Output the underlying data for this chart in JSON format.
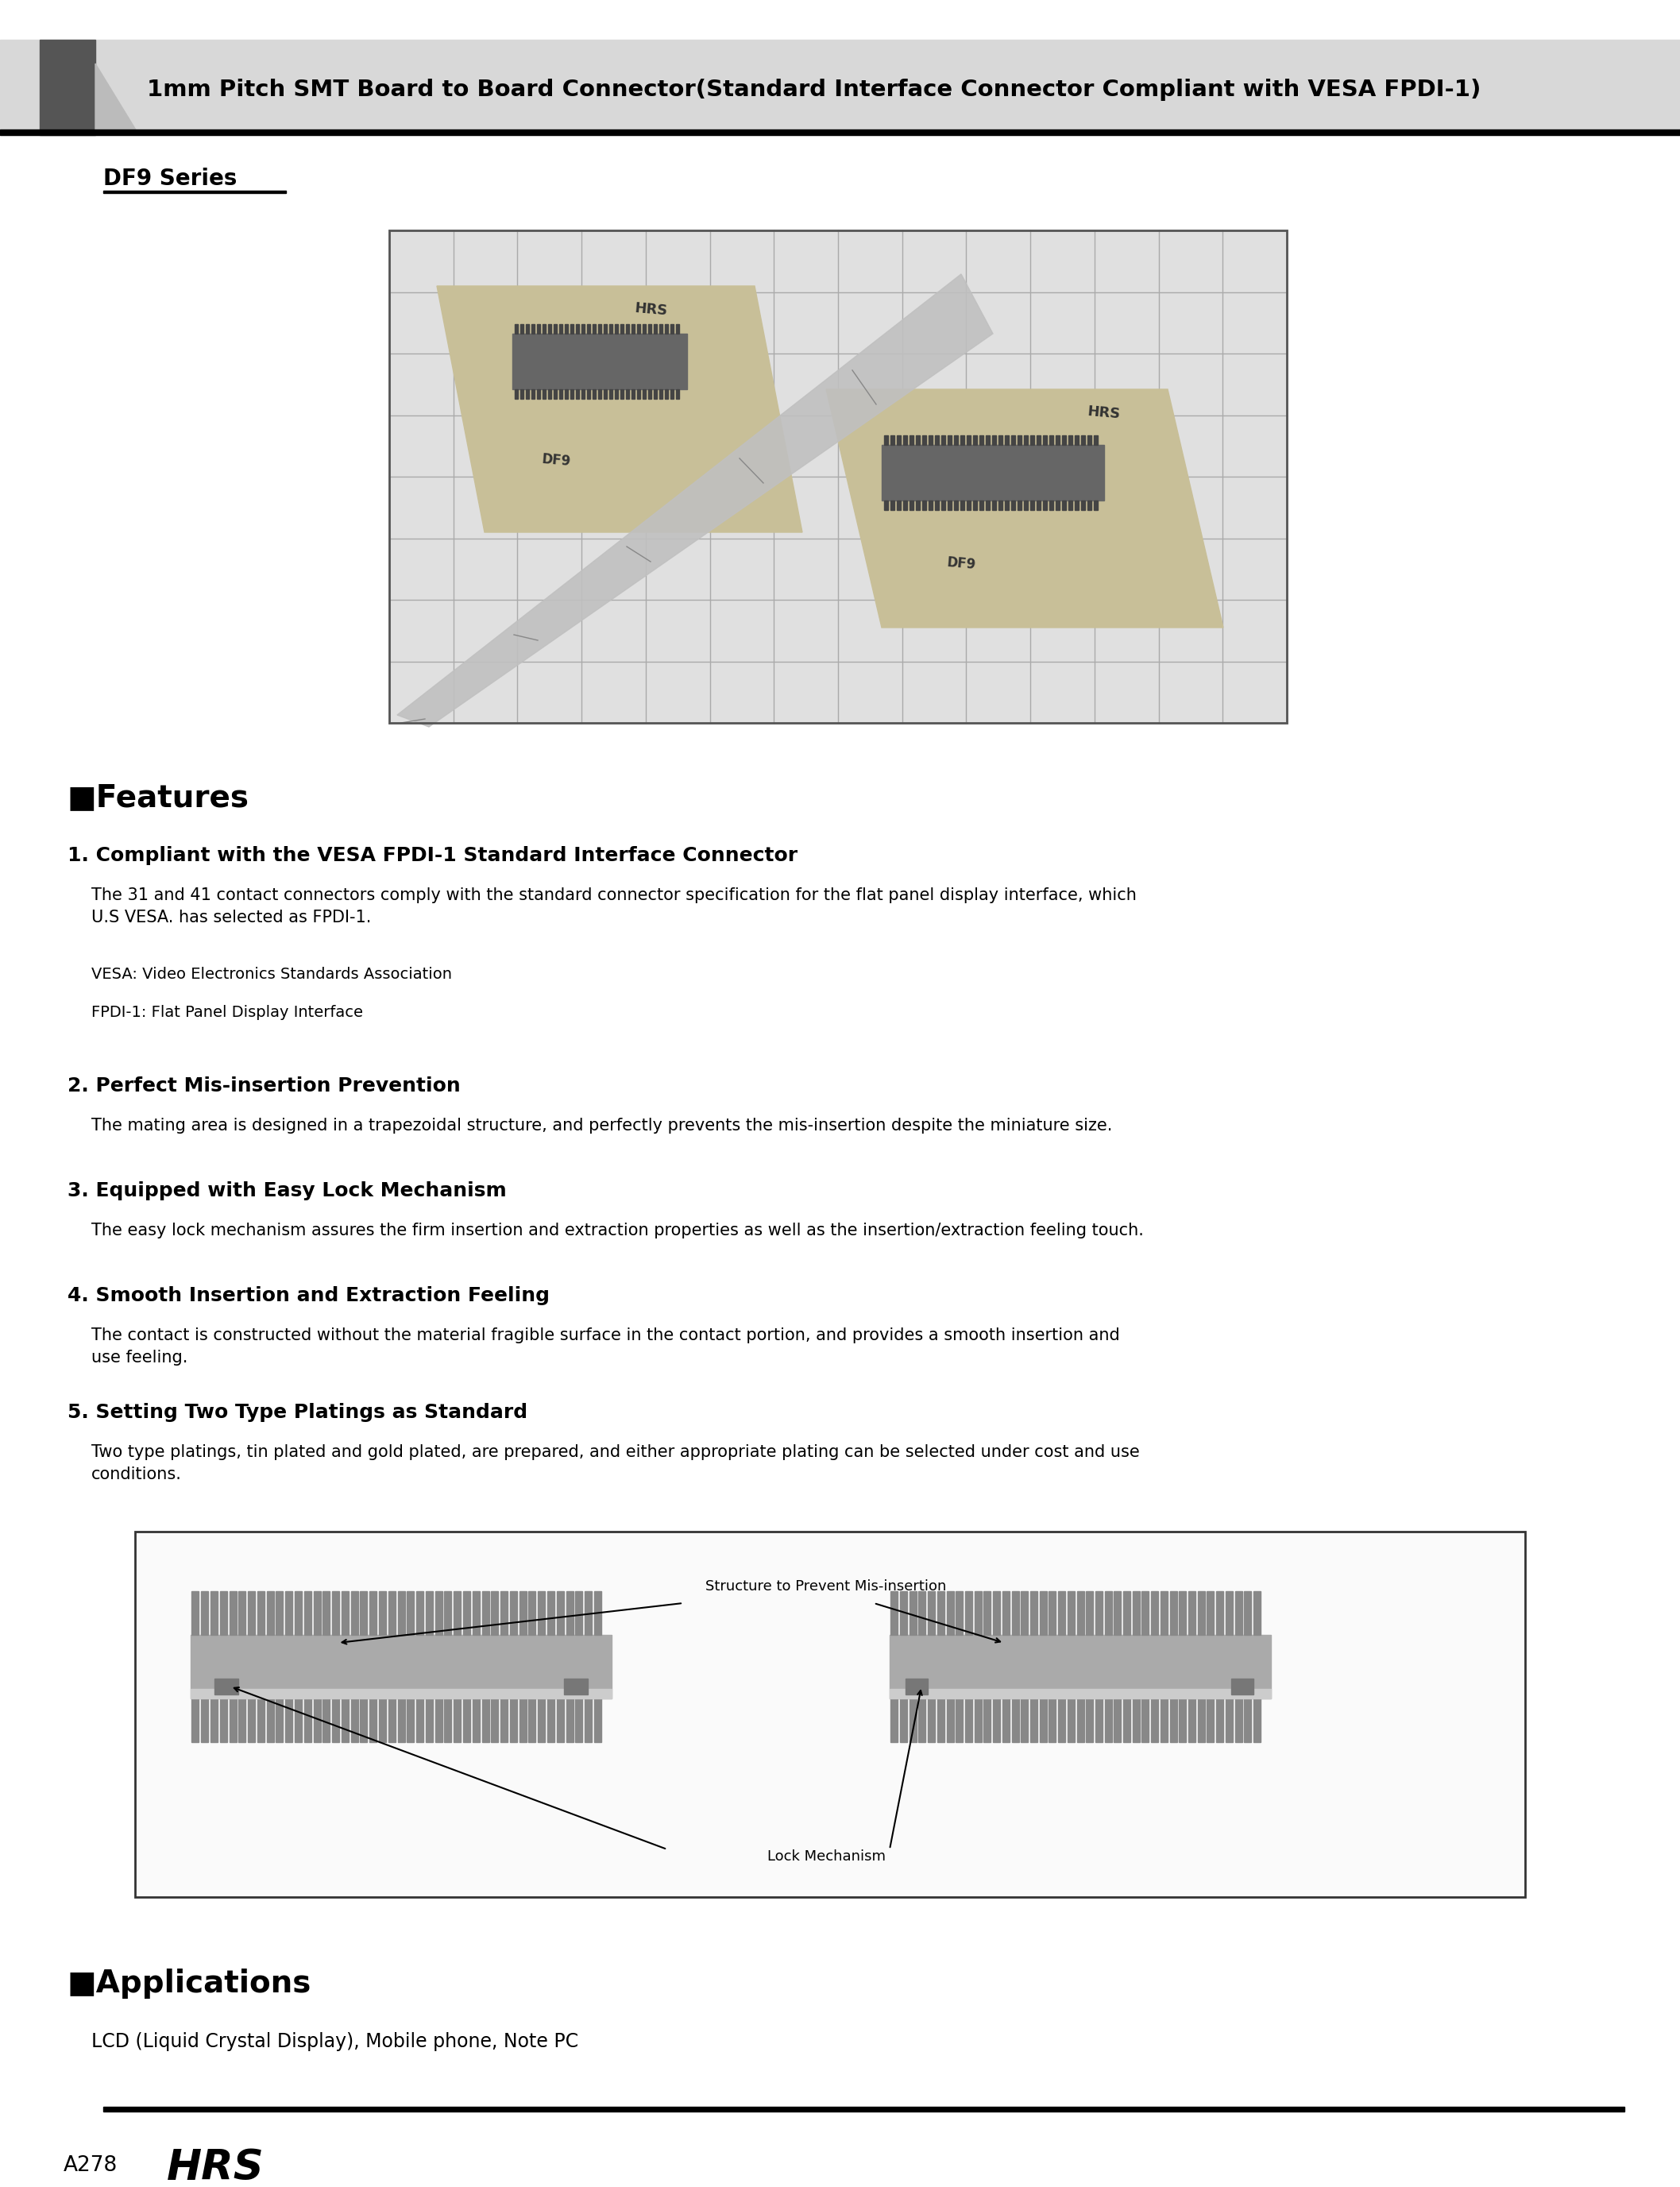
{
  "bg_color": "#ffffff",
  "header_bg_color": "#d8d8d8",
  "header_title": "1mm Pitch SMT Board to Board Connector(Standard Interface Connector Compliant with VESA FPDI-1)",
  "series_title": "DF9 Series",
  "features_title": "■Features",
  "feature1_title": "1. Compliant with the VESA FPDI-1 Standard Interface Connector",
  "feature1_text": "The 31 and 41 contact connectors comply with the standard connector specification for the flat panel display interface, which\nU.S VESA. has selected as FPDI-1.",
  "feature1_note1": "VESA: Video Electronics Standards Association",
  "feature1_note2": "FPDI-1: Flat Panel Display Interface",
  "feature2_title": "2. Perfect Mis-insertion Prevention",
  "feature2_text": "The mating area is designed in a trapezoidal structure, and perfectly prevents the mis-insertion despite the miniature size.",
  "feature3_title": "3. Equipped with Easy Lock Mechanism",
  "feature3_text": "The easy lock mechanism assures the firm insertion and extraction properties as well as the insertion/extraction feeling touch.",
  "feature4_title": "4. Smooth Insertion and Extraction Feeling",
  "feature4_text": "The contact is constructed without the material fragible surface in the contact portion, and provides a smooth insertion and\nuse feeling.",
  "feature5_title": "5. Setting Two Type Platings as Standard",
  "feature5_text": "Two type platings, tin plated and gold plated, are prepared, and either appropriate plating can be selected under cost and use\nconditions.",
  "applications_title": "■Applications",
  "applications_text": "LCD (Liquid Crystal Display), Mobile phone, Note PC",
  "footer_page": "A278",
  "footer_logo": "HRS",
  "diagram_label1": "Structure to Prevent Mis-insertion",
  "diagram_label2": "Lock Mechanism"
}
